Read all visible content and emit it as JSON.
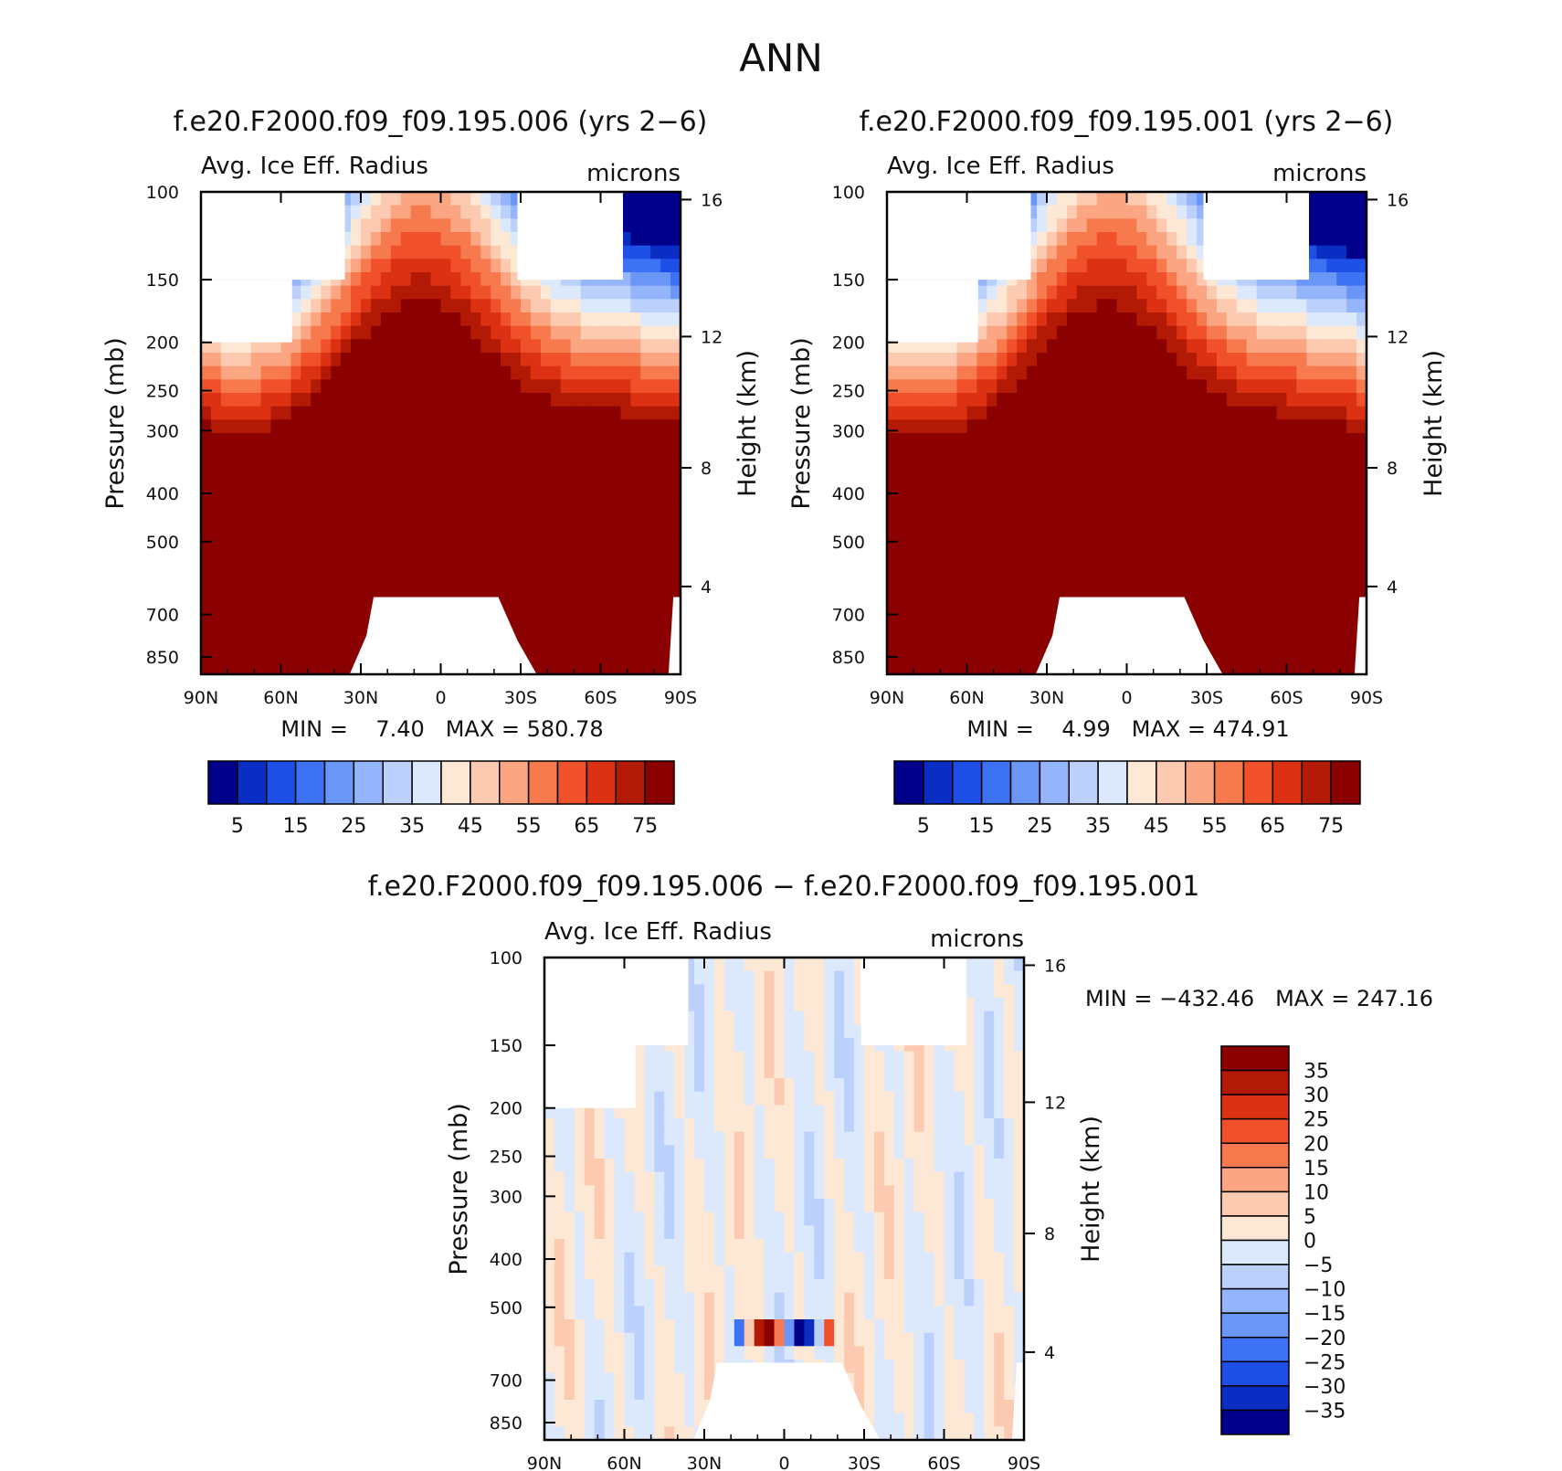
{
  "page": {
    "title": "ANN"
  },
  "panels": [
    {
      "id": "p1",
      "title": "f.e20.F2000.f09_f09.195.006 (yrs 2−6)",
      "left_label": "Avg. Ice Eff. Radius",
      "right_label": "microns",
      "ylabel": "Pressure (mb)",
      "y2label": "Height (km)",
      "minmax": "MIN =    7.40   MAX = 580.78"
    },
    {
      "id": "p2",
      "title": "f.e20.F2000.f09_f09.195.001 (yrs 2−6)",
      "left_label": "Avg. Ice Eff. Radius",
      "right_label": "microns",
      "ylabel": "Pressure (mb)",
      "y2label": "Height (km)",
      "minmax": "MIN =    4.99   MAX = 474.91"
    },
    {
      "id": "p3",
      "title": "f.e20.F2000.f09_f09.195.006 − f.e20.F2000.f09_f09.195.001",
      "left_label": "Avg. Ice Eff. Radius",
      "right_label": "microns",
      "ylabel": "Pressure (mb)",
      "y2label": "Height (km)",
      "minmax": "MIN = −432.46   MAX = 247.16"
    }
  ],
  "chart_data": [
    {
      "type": "heatmap",
      "title": "f.e20.F2000.f09_f09.195.006 (yrs 2−6)",
      "variable": "Avg. Ice Eff. Radius",
      "units": "microns",
      "xlabel": "",
      "ylabel": "Pressure (mb)",
      "y2label": "Height (km)",
      "x_ticks": [
        "90N",
        "60N",
        "30N",
        "0",
        "30S",
        "60S",
        "90S"
      ],
      "y_ticks": [
        "100",
        "150",
        "200",
        "250",
        "300",
        "400",
        "500",
        "700",
        "850"
      ],
      "y2_ticks": [
        "16",
        "12",
        "8",
        "4"
      ],
      "ylim": [
        100,
        1000
      ],
      "y_scale": "log",
      "min": 7.4,
      "max": 580.78,
      "contour_levels": [
        5,
        10,
        15,
        20,
        25,
        30,
        35,
        40,
        45,
        50,
        55,
        60,
        65,
        70,
        75
      ],
      "colorbar_labels": [
        "5",
        "15",
        "25",
        "35",
        "45",
        "55",
        "65",
        "75"
      ],
      "colors": [
        "#00008b",
        "#0a2dc4",
        "#1e50e8",
        "#3d72f5",
        "#6a96f8",
        "#94b5fb",
        "#bcd0fc",
        "#dce9fd",
        "#fde8d6",
        "#fccab0",
        "#fba582",
        "#f77a4e",
        "#f0502a",
        "#dc3112",
        "#b31a06",
        "#8b0000"
      ]
    },
    {
      "type": "heatmap",
      "title": "f.e20.F2000.f09_f09.195.001 (yrs 2−6)",
      "variable": "Avg. Ice Eff. Radius",
      "units": "microns",
      "xlabel": "",
      "ylabel": "Pressure (mb)",
      "y2label": "Height (km)",
      "x_ticks": [
        "90N",
        "60N",
        "30N",
        "0",
        "30S",
        "60S",
        "90S"
      ],
      "y_ticks": [
        "100",
        "150",
        "200",
        "250",
        "300",
        "400",
        "500",
        "700",
        "850"
      ],
      "y2_ticks": [
        "16",
        "12",
        "8",
        "4"
      ],
      "ylim": [
        100,
        1000
      ],
      "y_scale": "log",
      "min": 4.99,
      "max": 474.91,
      "contour_levels": [
        5,
        10,
        15,
        20,
        25,
        30,
        35,
        40,
        45,
        50,
        55,
        60,
        65,
        70,
        75
      ],
      "colorbar_labels": [
        "5",
        "15",
        "25",
        "35",
        "45",
        "55",
        "65",
        "75"
      ],
      "colors": [
        "#00008b",
        "#0a2dc4",
        "#1e50e8",
        "#3d72f5",
        "#6a96f8",
        "#94b5fb",
        "#bcd0fc",
        "#dce9fd",
        "#fde8d6",
        "#fccab0",
        "#fba582",
        "#f77a4e",
        "#f0502a",
        "#dc3112",
        "#b31a06",
        "#8b0000"
      ]
    },
    {
      "type": "heatmap",
      "title": "f.e20.F2000.f09_f09.195.006 − f.e20.F2000.f09_f09.195.001",
      "variable": "Avg. Ice Eff. Radius",
      "units": "microns",
      "xlabel": "",
      "ylabel": "Pressure (mb)",
      "y2label": "Height (km)",
      "x_ticks": [
        "90N",
        "60N",
        "30N",
        "0",
        "30S",
        "60S",
        "90S"
      ],
      "y_ticks": [
        "100",
        "150",
        "200",
        "250",
        "300",
        "400",
        "500",
        "700",
        "850"
      ],
      "y2_ticks": [
        "16",
        "12",
        "8",
        "4"
      ],
      "ylim": [
        100,
        1000
      ],
      "y_scale": "log",
      "min": -432.46,
      "max": 247.16,
      "contour_levels": [
        -35,
        -30,
        -25,
        -20,
        -15,
        -10,
        -5,
        0,
        5,
        10,
        15,
        20,
        25,
        30,
        35
      ],
      "colorbar_labels": [
        "35",
        "30",
        "25",
        "20",
        "15",
        "10",
        "5",
        "0",
        "−5",
        "−10",
        "−15",
        "−20",
        "−25",
        "−30",
        "−35"
      ],
      "colors": [
        "#8b0000",
        "#b31a06",
        "#dc3112",
        "#f0502a",
        "#f77a4e",
        "#fba582",
        "#fccab0",
        "#fde8d6",
        "#dce9fd",
        "#bcd0fc",
        "#94b5fb",
        "#6a96f8",
        "#3d72f5",
        "#1e50e8",
        "#0a2dc4",
        "#00008b"
      ]
    }
  ]
}
